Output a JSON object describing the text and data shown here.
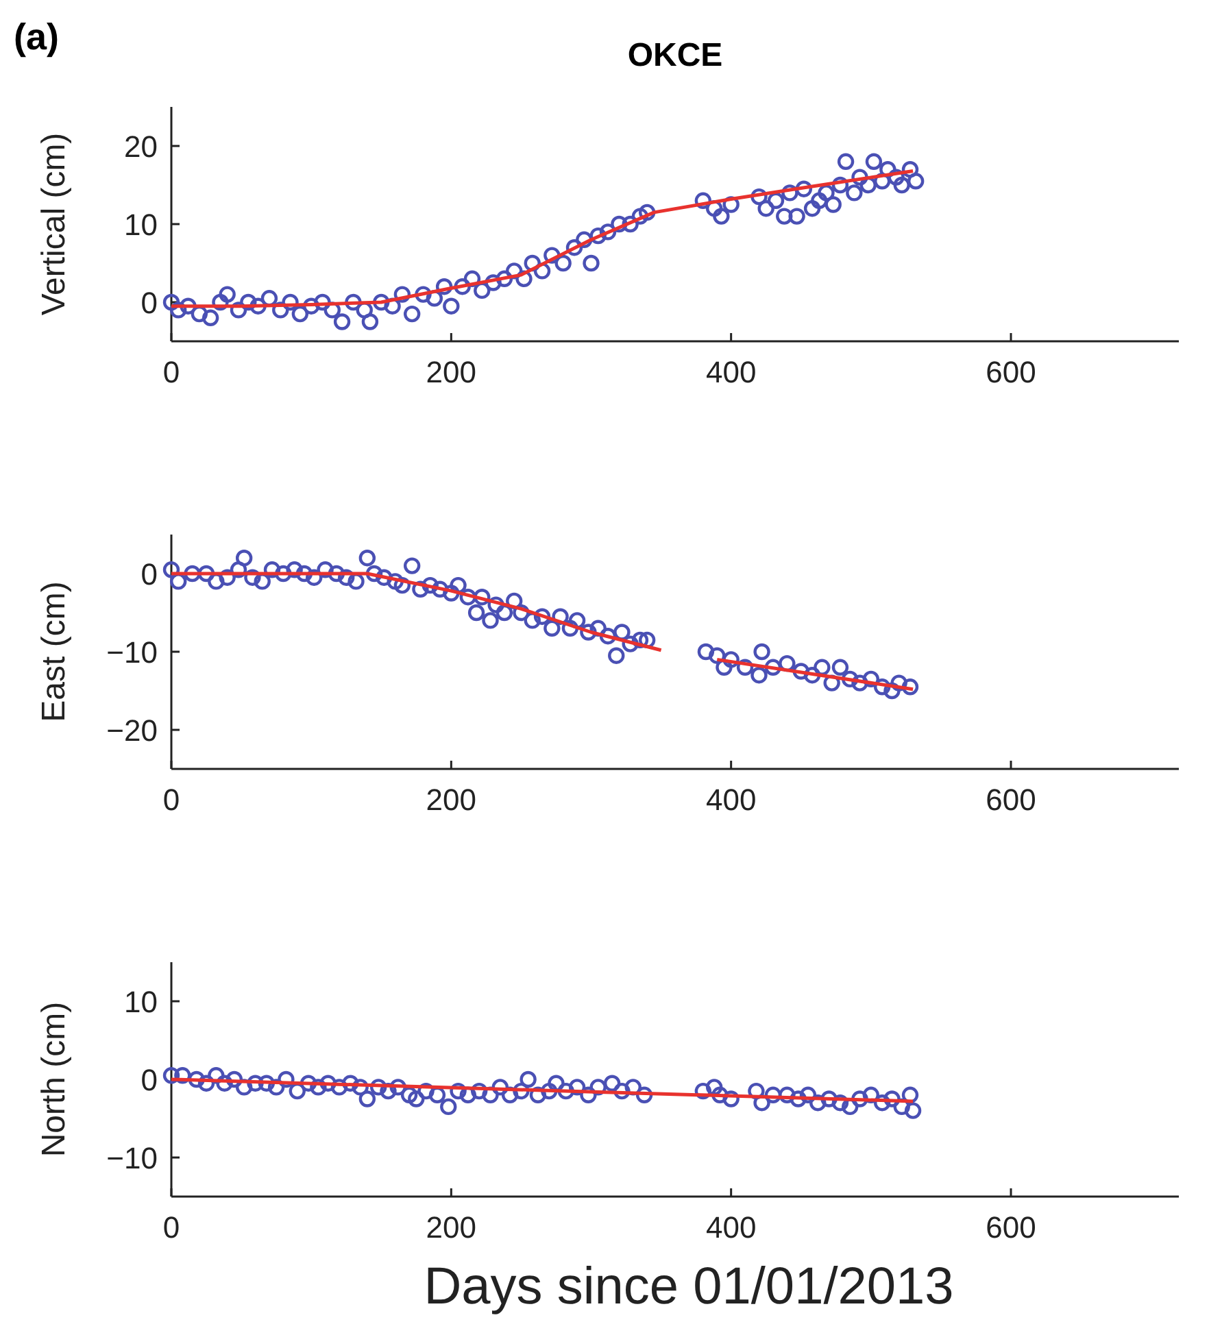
{
  "chart_data": [
    {
      "type": "scatter",
      "title": "OKCE",
      "annotations": [
        "(a)"
      ],
      "ylabel": "Vertical (cm)",
      "xlim": [
        0,
        720
      ],
      "xticks": [
        0,
        200,
        400,
        600
      ],
      "ylim": [
        -5,
        25
      ],
      "yticks": [
        0,
        10,
        20
      ],
      "series": [
        {
          "type": "scatter",
          "color": "#4a50b4",
          "marker": "circle",
          "x": [
            0,
            5,
            12,
            20,
            28,
            35,
            40,
            48,
            55,
            62,
            70,
            78,
            85,
            92,
            100,
            108,
            115,
            122,
            130,
            138,
            142,
            150,
            158,
            165,
            172,
            180,
            188,
            195,
            200,
            208,
            215,
            222,
            230,
            238,
            245,
            252,
            258,
            265,
            272,
            280,
            288,
            295,
            300,
            305,
            312,
            320,
            328,
            335,
            340,
            380,
            388,
            393,
            400,
            420,
            425,
            432,
            438,
            442,
            447,
            452,
            458,
            463,
            468,
            473,
            478,
            482,
            488,
            492,
            498,
            502,
            508,
            512,
            518,
            522,
            528,
            532
          ],
          "values": [
            0,
            -1,
            -0.5,
            -1.5,
            -2,
            0,
            1,
            -1,
            0,
            -0.5,
            0.5,
            -1,
            0,
            -1.5,
            -0.5,
            0,
            -1,
            -2.5,
            0,
            -1,
            -2.5,
            0,
            -0.5,
            1,
            -1.5,
            1,
            0.5,
            2,
            -0.5,
            2,
            3,
            1.5,
            2.5,
            3,
            4,
            3,
            5,
            4,
            6,
            5,
            7,
            8,
            5,
            8.5,
            9,
            10,
            10,
            11,
            11.5,
            13,
            12,
            11,
            12.5,
            13.5,
            12,
            13,
            11,
            14,
            11,
            14.5,
            12,
            13,
            14,
            12.5,
            15,
            18,
            14,
            16,
            15,
            18,
            15.5,
            17,
            16,
            15,
            17,
            15.5
          ]
        },
        {
          "type": "line",
          "color": "#e8322e",
          "x": [
            0,
            50,
            100,
            150,
            200,
            250,
            300,
            345,
            400,
            450,
            530
          ],
          "values": [
            -0.5,
            -0.5,
            -0.3,
            0,
            1.8,
            3.5,
            8,
            11.5,
            13.2,
            14.6,
            16.8
          ]
        }
      ]
    },
    {
      "type": "scatter",
      "ylabel": "East (cm)",
      "xlim": [
        0,
        720
      ],
      "xticks": [
        0,
        200,
        400,
        600
      ],
      "ylim": [
        -25,
        5
      ],
      "yticks": [
        -20,
        -10,
        0
      ],
      "series": [
        {
          "type": "scatter",
          "color": "#4a50b4",
          "marker": "circle",
          "x": [
            0,
            5,
            15,
            25,
            32,
            40,
            48,
            52,
            58,
            65,
            72,
            80,
            88,
            95,
            102,
            110,
            118,
            125,
            132,
            140,
            145,
            152,
            160,
            165,
            172,
            178,
            185,
            192,
            200,
            205,
            212,
            218,
            222,
            228,
            232,
            238,
            245,
            250,
            258,
            265,
            272,
            278,
            285,
            290,
            298,
            305,
            312,
            318,
            322,
            328,
            335,
            340,
            382,
            390,
            395,
            400,
            410,
            420,
            422,
            430,
            440,
            450,
            458,
            465,
            472,
            478,
            485,
            492,
            500,
            508,
            515,
            520,
            528
          ],
          "values": [
            0.5,
            -1,
            0,
            0,
            -1,
            -0.5,
            0.5,
            2,
            -0.5,
            -1,
            0.5,
            0,
            0.5,
            0,
            -0.5,
            0.5,
            0,
            -0.5,
            -1,
            2,
            0,
            -0.5,
            -1,
            -1.5,
            1,
            -2,
            -1.5,
            -2,
            -2.5,
            -1.5,
            -3,
            -5,
            -3,
            -6,
            -4,
            -5,
            -3.5,
            -5,
            -6,
            -5.5,
            -7,
            -5.5,
            -7,
            -6,
            -7.5,
            -7,
            -8,
            -10.5,
            -7.5,
            -9,
            -8.5,
            -8.5,
            -10,
            -10.5,
            -12,
            -11,
            -12,
            -13,
            -10,
            -12,
            -11.5,
            -12.5,
            -13,
            -12,
            -14,
            -12,
            -13.5,
            -14,
            -13.5,
            -14.5,
            -15,
            -14,
            -14.5
          ]
        },
        {
          "type": "line",
          "color": "#e8322e",
          "x": [
            0,
            140,
            200,
            250,
            300,
            350,
            370,
            390,
            530
          ],
          "values": [
            0,
            0,
            -2.2,
            -4.5,
            -7.5,
            -9.8,
            null,
            -11,
            -14.8
          ]
        }
      ]
    },
    {
      "type": "scatter",
      "ylabel": "North (cm)",
      "xlabel": "Days since 01/01/2013",
      "xlim": [
        0,
        720
      ],
      "xticks": [
        0,
        200,
        400,
        600
      ],
      "ylim": [
        -15,
        15
      ],
      "yticks": [
        -10,
        0,
        10
      ],
      "series": [
        {
          "type": "scatter",
          "color": "#4a50b4",
          "marker": "circle",
          "x": [
            0,
            8,
            18,
            25,
            32,
            38,
            45,
            52,
            60,
            68,
            75,
            82,
            90,
            98,
            105,
            112,
            120,
            128,
            135,
            140,
            148,
            155,
            162,
            170,
            175,
            182,
            190,
            198,
            205,
            212,
            220,
            228,
            235,
            242,
            250,
            255,
            262,
            270,
            275,
            282,
            290,
            298,
            305,
            315,
            322,
            330,
            338,
            380,
            388,
            392,
            400,
            418,
            422,
            430,
            440,
            448,
            455,
            462,
            470,
            478,
            485,
            492,
            500,
            508,
            515,
            522,
            528,
            530
          ],
          "values": [
            0.5,
            0.5,
            0,
            -0.5,
            0.5,
            -0.5,
            0,
            -1,
            -0.5,
            -0.5,
            -1,
            0,
            -1.5,
            -0.5,
            -1,
            -0.5,
            -1,
            -0.5,
            -1,
            -2.5,
            -1,
            -1.5,
            -1,
            -2,
            -2.5,
            -1.5,
            -2,
            -3.5,
            -1.5,
            -2,
            -1.5,
            -2,
            -1,
            -2,
            -1.5,
            0,
            -2,
            -1.5,
            -0.5,
            -1.5,
            -1,
            -2,
            -1,
            -0.5,
            -1.5,
            -1,
            -2,
            -1.5,
            -1,
            -2,
            -2.5,
            -1.5,
            -3,
            -2,
            -2,
            -2.5,
            -2,
            -3,
            -2.5,
            -3,
            -3.5,
            -2.5,
            -2,
            -3,
            -2.5,
            -3.5,
            -2,
            -4
          ]
        },
        {
          "type": "line",
          "color": "#e8322e",
          "x": [
            0,
            265,
            530
          ],
          "values": [
            0,
            -1.4,
            -2.8
          ]
        }
      ]
    }
  ]
}
